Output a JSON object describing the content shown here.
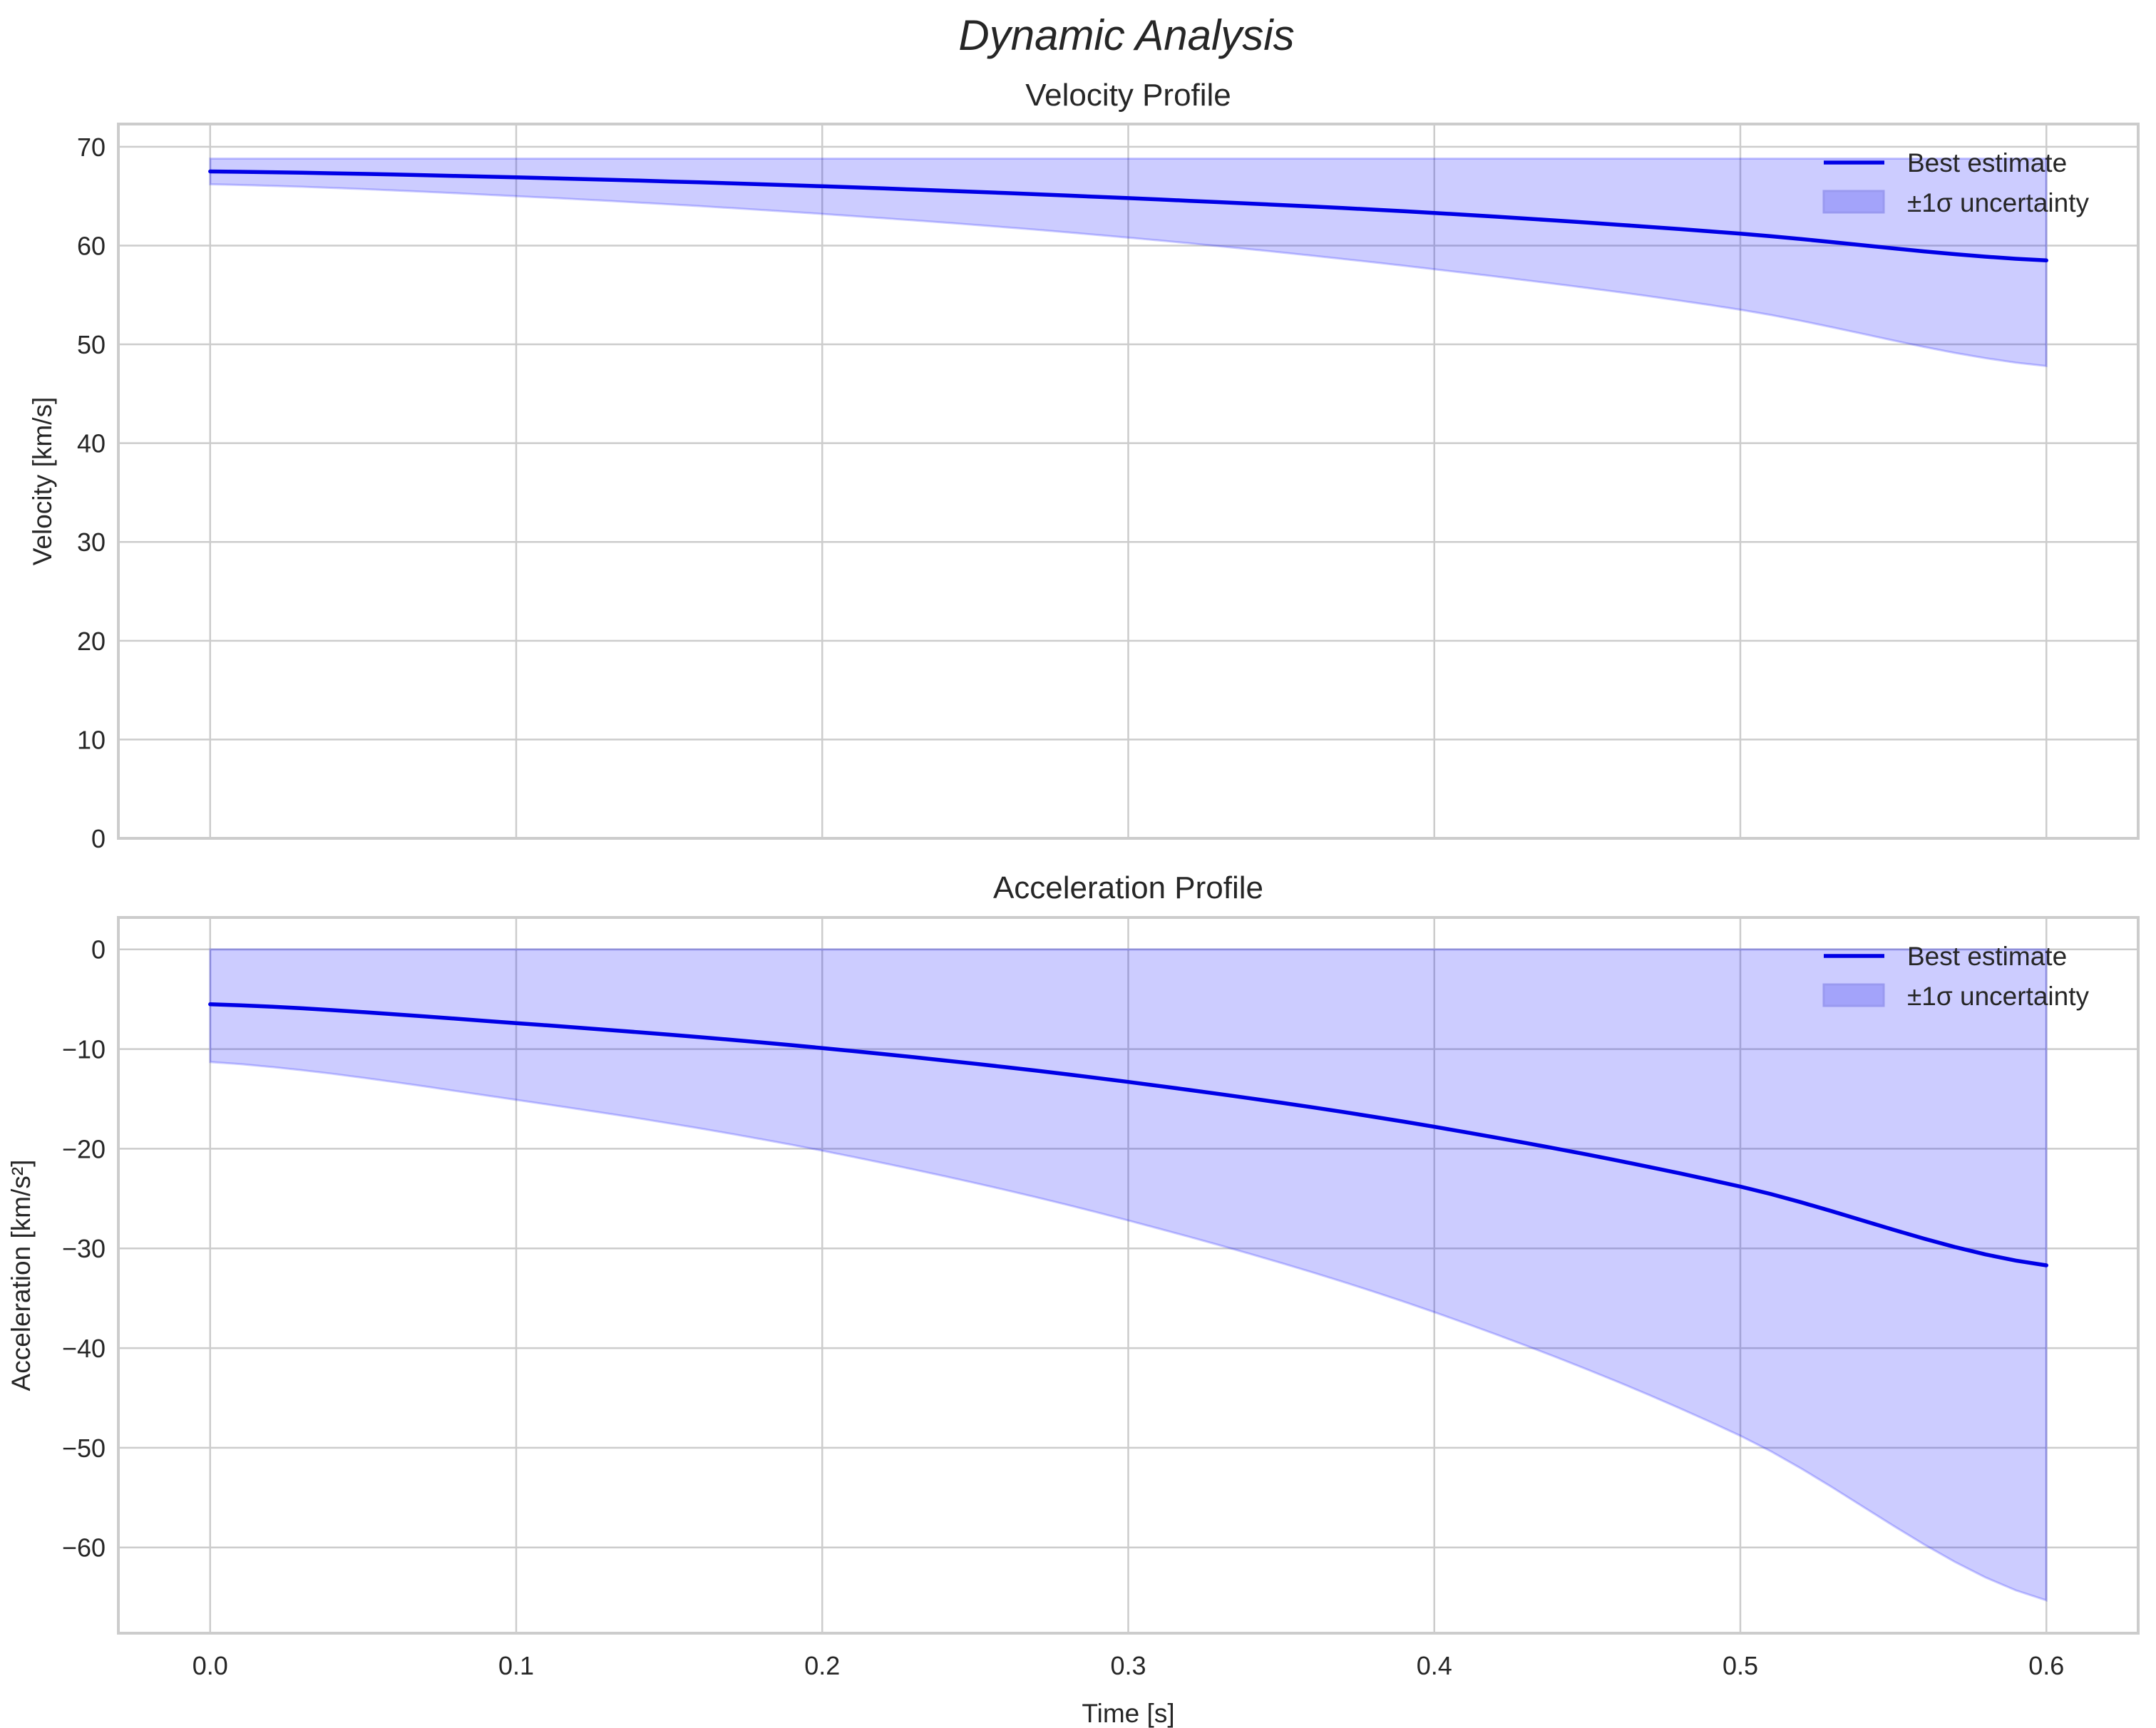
{
  "figure": {
    "suptitle": "Dynamic Analysis"
  },
  "colors": {
    "line": "#0000e6",
    "band_fill": "#ccccfa",
    "band_edge": "#9a9af0",
    "legend_patch": "#a3a3fa",
    "grid": "#cccccc",
    "spine": "#cccccc"
  },
  "legend": {
    "line_label": "Best estimate",
    "band_label": "±1σ uncertainty"
  },
  "chart_data": [
    {
      "type": "line",
      "title": "Velocity Profile",
      "xlabel": "",
      "ylabel": "Velocity [km/s]",
      "x": [
        0.0,
        0.1,
        0.2,
        0.3,
        0.4,
        0.5,
        0.6
      ],
      "series": [
        {
          "name": "Best estimate",
          "values": [
            67.5,
            66.9,
            66.0,
            64.8,
            63.3,
            61.2,
            58.5
          ]
        },
        {
          "name": "±1σ uncertainty (upper)",
          "values": [
            68.8,
            68.8,
            68.8,
            68.8,
            68.8,
            68.8,
            68.8
          ]
        },
        {
          "name": "±1σ uncertainty (lower)",
          "values": [
            66.2,
            65.0,
            63.2,
            60.8,
            57.6,
            53.5,
            47.8
          ]
        }
      ],
      "xlim": [
        -0.03,
        0.63
      ],
      "ylim": [
        0,
        72.3
      ],
      "xticks": [
        "0.0",
        "0.1",
        "0.2",
        "0.3",
        "0.4",
        "0.5",
        "0.6"
      ],
      "yticks": [
        "0",
        "10",
        "20",
        "30",
        "40",
        "50",
        "60",
        "70"
      ],
      "grid": true,
      "legend_position": "upper right"
    },
    {
      "type": "line",
      "title": "Acceleration Profile",
      "xlabel": "Time [s]",
      "ylabel": "Acceleration [km/s²]",
      "x": [
        0.0,
        0.1,
        0.2,
        0.3,
        0.4,
        0.5,
        0.6
      ],
      "series": [
        {
          "name": "Best estimate",
          "values": [
            -5.5,
            -7.4,
            -9.9,
            -13.3,
            -17.8,
            -23.8,
            -31.7
          ]
        },
        {
          "name": "±1σ uncertainty (upper)",
          "values": [
            0,
            0,
            0,
            0,
            0,
            0,
            0
          ]
        },
        {
          "name": "±1σ uncertainty (lower)",
          "values": [
            -11.3,
            -15.1,
            -20.2,
            -27.2,
            -36.4,
            -48.8,
            -65.3
          ]
        }
      ],
      "xlim": [
        -0.03,
        0.63
      ],
      "ylim": [
        -68.6,
        3.2
      ],
      "xticks": [
        "0.0",
        "0.1",
        "0.2",
        "0.3",
        "0.4",
        "0.5",
        "0.6"
      ],
      "yticks": [
        "0",
        "−10",
        "−20",
        "−30",
        "−40",
        "−50",
        "−60"
      ],
      "grid": true,
      "legend_position": "upper right"
    }
  ]
}
